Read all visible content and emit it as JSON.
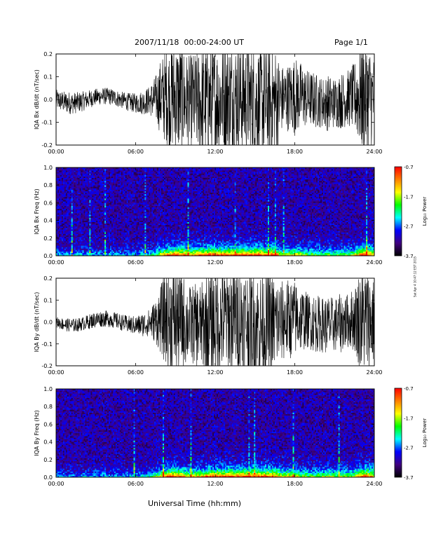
{
  "header": {
    "title": "2007/11/18  00:00-24:00 UT",
    "page": "Page 1/1"
  },
  "x_axis_title": "Universal Time (hh:mm)",
  "stamp": "Sat Apr 4 10:47:12 EST 2015",
  "colorbar": {
    "title": "Log₁₀ Power",
    "ticks": [
      "-0.7",
      "-1.7",
      "-2.7",
      "-3.7"
    ],
    "stops": [
      "#ff0000",
      "#ff8000",
      "#ffff00",
      "#00ff00",
      "#00ffff",
      "#0000ff",
      "#400080",
      "#000000"
    ]
  },
  "chart_data": [
    {
      "type": "line",
      "ylabel": "IQA Bx dB/dt (nT/sec)",
      "xlim": [
        0,
        24
      ],
      "ylim": [
        -0.2,
        0.2
      ],
      "xticks": [
        "00:00",
        "06:00",
        "12:00",
        "18:00",
        "24:00"
      ],
      "yticks": [
        "-0.2",
        "-0.1",
        "0.0",
        "0.1",
        "0.2"
      ],
      "color": "#000000",
      "series": [
        {
          "x": [
            0,
            1,
            2,
            3,
            4,
            5,
            6,
            7,
            7.5,
            8,
            8.5,
            9,
            9.5,
            10,
            10.5,
            11,
            11.5,
            12,
            12.5,
            13,
            13.5,
            14,
            14.5,
            15,
            15.5,
            16,
            16.5,
            17,
            17.5,
            18,
            18.5,
            19,
            19.5,
            20,
            20.5,
            21,
            21.5,
            22,
            22.5,
            23,
            23.5,
            24
          ],
          "y": [
            0.035,
            0.04,
            0.035,
            0.03,
            0.03,
            0.03,
            0.035,
            0.05,
            0.08,
            0.15,
            0.18,
            0.2,
            0.2,
            0.16,
            0.18,
            0.2,
            0.2,
            0.2,
            0.2,
            0.2,
            0.2,
            0.2,
            0.2,
            0.2,
            0.2,
            0.2,
            0.2,
            0.12,
            0.12,
            0.14,
            0.12,
            0.1,
            0.1,
            0.09,
            0.1,
            0.09,
            0.1,
            0.1,
            0.12,
            0.2,
            0.2,
            0.15
          ]
        }
      ]
    },
    {
      "type": "heatmap",
      "ylabel": "IQA Bx Freq (Hz)",
      "xlim": [
        0,
        24
      ],
      "ylim": [
        0,
        1.0
      ],
      "xticks": [
        "00:00",
        "06:00",
        "12:00",
        "18:00",
        "24:00"
      ],
      "yticks": [
        "0.0",
        "0.2",
        "0.4",
        "0.6",
        "0.8",
        "1.0"
      ],
      "zlim": [
        -3.7,
        -0.7
      ]
    },
    {
      "type": "line",
      "ylabel": "IQA By dB/dt (nT/sec)",
      "xlim": [
        0,
        24
      ],
      "ylim": [
        -0.2,
        0.2
      ],
      "xticks": [
        "00:00",
        "06:00",
        "12:00",
        "18:00",
        "24:00"
      ],
      "yticks": [
        "-0.2",
        "-0.1",
        "0.0",
        "0.1",
        "0.2"
      ],
      "color": "#000000",
      "series": [
        {
          "x": [
            0,
            1,
            2,
            3,
            4,
            5,
            6,
            7,
            7.5,
            8,
            8.5,
            9,
            9.5,
            10,
            10.5,
            11,
            11.5,
            12,
            12.5,
            13,
            13.5,
            14,
            14.5,
            15,
            15.5,
            16,
            16.5,
            17,
            17.5,
            18,
            18.5,
            19,
            19.5,
            20,
            20.5,
            21,
            21.5,
            22,
            22.5,
            23,
            23.5,
            24
          ],
          "y": [
            0.02,
            0.025,
            0.025,
            0.03,
            0.03,
            0.03,
            0.035,
            0.05,
            0.08,
            0.14,
            0.2,
            0.2,
            0.18,
            0.14,
            0.15,
            0.16,
            0.2,
            0.2,
            0.2,
            0.2,
            0.2,
            0.2,
            0.2,
            0.2,
            0.2,
            0.2,
            0.18,
            0.15,
            0.15,
            0.14,
            0.12,
            0.1,
            0.11,
            0.1,
            0.11,
            0.1,
            0.11,
            0.1,
            0.12,
            0.2,
            0.2,
            0.15
          ]
        }
      ]
    },
    {
      "type": "heatmap",
      "ylabel": "IQA By Freq (Hz)",
      "xlim": [
        0,
        24
      ],
      "ylim": [
        0,
        1.0
      ],
      "xticks": [
        "00:00",
        "06:00",
        "12:00",
        "18:00",
        "24:00"
      ],
      "yticks": [
        "0.0",
        "0.2",
        "0.4",
        "0.6",
        "0.8",
        "1.0"
      ],
      "zlim": [
        -3.7,
        -0.7
      ]
    }
  ]
}
